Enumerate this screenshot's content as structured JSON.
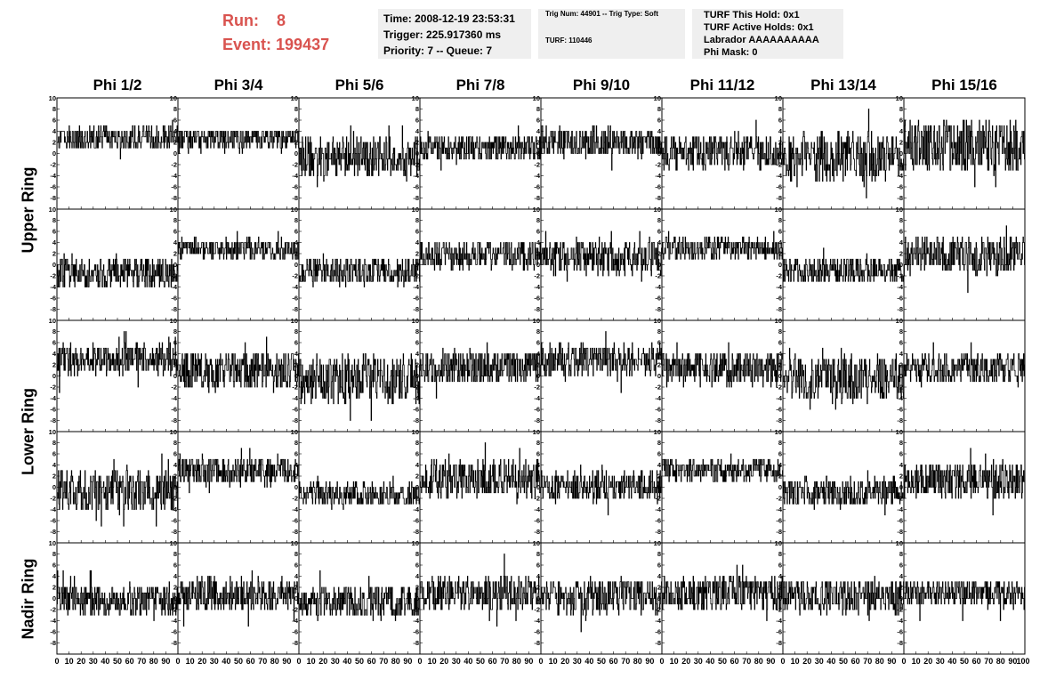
{
  "run_info": {
    "run_label": "Run:",
    "run_value": "8",
    "event_label": "Event:",
    "event_value": "199437"
  },
  "time_box": {
    "time": "Time: 2008-12-19 23:53:31",
    "trigger": "Trigger: 225.917360 ms",
    "priority": "Priority: 7 -- Queue: 7"
  },
  "trig_box": {
    "trig_line": "Trig Num: 44901 -- Trig Type: Soft",
    "turf_line": "TURF: 110446"
  },
  "turf_box": {
    "this_hold": "TURF This Hold: 0x1",
    "active_holds": "TURF Active Holds: 0x1",
    "labrador": "Labrador AAAAAAAAAA",
    "phi_mask": "Phi Mask: 0"
  },
  "phi_headers": [
    "Phi 1/2",
    "Phi 3/4",
    "Phi 5/6",
    "Phi 7/8",
    "Phi 9/10",
    "Phi 11/12",
    "Phi 13/14",
    "Phi 15/16"
  ],
  "ring_labels": {
    "upper": "Upper Ring",
    "lower": "Lower Ring",
    "nadir": "Nadir Ring"
  },
  "colors": {
    "title_red": "#d9534f",
    "info_bg": "#efefef",
    "trace": "#000000"
  },
  "chart_data": {
    "type": "line",
    "rows": 5,
    "cols": 8,
    "xlim": [
      0,
      100
    ],
    "ylim": [
      -10,
      10
    ],
    "x_ticks": [
      0,
      10,
      20,
      30,
      40,
      50,
      60,
      70,
      80,
      90
    ],
    "x_tick_labels_end": "100",
    "y_ticks": [
      -8,
      -6,
      -4,
      -2,
      0,
      2,
      4,
      6,
      8
    ],
    "y_top_label": "10",
    "panels": [
      [
        {
          "baseline": 2.8,
          "amp": 1.6,
          "min": -3,
          "max": 6
        },
        {
          "baseline": 2.6,
          "amp": 1.7,
          "min": -2,
          "max": 4
        },
        {
          "baseline": -0.5,
          "amp": 2.8,
          "min": -8,
          "max": 5
        },
        {
          "baseline": 1.0,
          "amp": 1.8,
          "min": -3,
          "max": 10
        },
        {
          "baseline": 2.0,
          "amp": 2.0,
          "min": -3,
          "max": 6
        },
        {
          "baseline": 0.4,
          "amp": 2.4,
          "min": -6,
          "max": 8
        },
        {
          "baseline": -0.6,
          "amp": 3.5,
          "min": -10,
          "max": 8
        },
        {
          "baseline": 1.5,
          "amp": 3.6,
          "min": -8,
          "max": 9
        }
      ],
      [
        {
          "baseline": -1.3,
          "amp": 2.0,
          "min": -4,
          "max": 6
        },
        {
          "baseline": 2.8,
          "amp": 1.4,
          "min": 1,
          "max": 8
        },
        {
          "baseline": -1.3,
          "amp": 1.8,
          "min": -4,
          "max": 4
        },
        {
          "baseline": 1.8,
          "amp": 2.0,
          "min": -3,
          "max": 6
        },
        {
          "baseline": 1.2,
          "amp": 2.3,
          "min": -7,
          "max": 6
        },
        {
          "baseline": 2.8,
          "amp": 1.5,
          "min": -1,
          "max": 8
        },
        {
          "baseline": -1.0,
          "amp": 1.8,
          "min": -5,
          "max": 4
        },
        {
          "baseline": 1.5,
          "amp": 2.6,
          "min": -7,
          "max": 8
        }
      ],
      [
        {
          "baseline": 3.0,
          "amp": 2.1,
          "min": -3,
          "max": 8
        },
        {
          "baseline": 1.0,
          "amp": 2.6,
          "min": -6,
          "max": 7
        },
        {
          "baseline": -0.6,
          "amp": 3.3,
          "min": -8,
          "max": 7
        },
        {
          "baseline": 1.5,
          "amp": 2.3,
          "min": -5,
          "max": 7
        },
        {
          "baseline": 2.8,
          "amp": 2.2,
          "min": -4,
          "max": 8
        },
        {
          "baseline": 1.3,
          "amp": 2.4,
          "min": -4,
          "max": 6
        },
        {
          "baseline": -0.5,
          "amp": 3.2,
          "min": -9,
          "max": 5
        },
        {
          "baseline": 1.2,
          "amp": 2.1,
          "min": -4,
          "max": 7
        }
      ],
      [
        {
          "baseline": -0.6,
          "amp": 2.9,
          "min": -7,
          "max": 8
        },
        {
          "baseline": 3.0,
          "amp": 2.0,
          "min": -2,
          "max": 10
        },
        {
          "baseline": -1.3,
          "amp": 1.6,
          "min": -4,
          "max": 5
        },
        {
          "baseline": 1.6,
          "amp": 2.5,
          "min": -4,
          "max": 10
        },
        {
          "baseline": 0.2,
          "amp": 2.1,
          "min": -5,
          "max": 6
        },
        {
          "baseline": 3.0,
          "amp": 1.5,
          "min": 0,
          "max": 10
        },
        {
          "baseline": -0.8,
          "amp": 1.9,
          "min": -5,
          "max": 5
        },
        {
          "baseline": 1.0,
          "amp": 2.4,
          "min": -5,
          "max": 7
        }
      ],
      [
        {
          "baseline": -0.3,
          "amp": 2.2,
          "min": -6,
          "max": 5
        },
        {
          "baseline": 0.8,
          "amp": 2.3,
          "min": -5,
          "max": 5
        },
        {
          "baseline": -0.6,
          "amp": 2.3,
          "min": -8,
          "max": 6
        },
        {
          "baseline": 0.9,
          "amp": 2.3,
          "min": -5,
          "max": 8
        },
        {
          "baseline": 0.3,
          "amp": 2.3,
          "min": -6,
          "max": 6
        },
        {
          "baseline": 0.8,
          "amp": 2.3,
          "min": -5,
          "max": 6
        },
        {
          "baseline": 0.4,
          "amp": 2.4,
          "min": -6,
          "max": 5
        },
        {
          "baseline": 0.8,
          "amp": 1.8,
          "min": -5,
          "max": 5
        }
      ]
    ]
  }
}
